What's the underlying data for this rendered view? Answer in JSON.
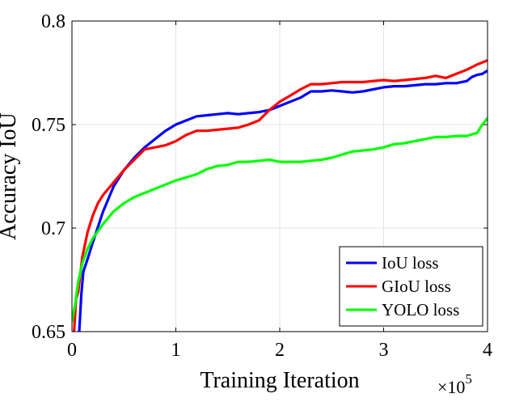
{
  "chart_data": {
    "type": "line",
    "title": "",
    "xlabel": "Training Iteration",
    "ylabel": "Accuracy IoU",
    "x_multiplier_label": "×10",
    "x_multiplier_exponent": "5",
    "xlim": [
      0,
      4
    ],
    "ylim": [
      0.65,
      0.8
    ],
    "xticks": [
      0,
      1,
      2,
      3,
      4
    ],
    "xtick_labels": [
      "0",
      "1",
      "2",
      "3",
      "4"
    ],
    "yticks": [
      0.65,
      0.7,
      0.75,
      0.8
    ],
    "ytick_labels": [
      "0.65",
      "0.7",
      "0.75",
      "0.8"
    ],
    "grid": true,
    "legend_position": "bottom-right",
    "series": [
      {
        "name": "IoU loss",
        "color": "#0000ff",
        "x": [
          0.07,
          0.09,
          0.11,
          0.15,
          0.2,
          0.3,
          0.4,
          0.5,
          0.6,
          0.7,
          0.8,
          0.9,
          1.0,
          1.1,
          1.2,
          1.3,
          1.4,
          1.5,
          1.6,
          1.7,
          1.8,
          1.9,
          2.0,
          2.1,
          2.2,
          2.3,
          2.4,
          2.5,
          2.6,
          2.7,
          2.8,
          2.9,
          3.0,
          3.1,
          3.2,
          3.3,
          3.4,
          3.5,
          3.6,
          3.7,
          3.8,
          3.85,
          3.9,
          3.95,
          4.0
        ],
        "y": [
          0.65,
          0.668,
          0.679,
          0.685,
          0.693,
          0.708,
          0.72,
          0.728,
          0.734,
          0.739,
          0.743,
          0.747,
          0.75,
          0.752,
          0.754,
          0.7545,
          0.755,
          0.7555,
          0.755,
          0.7555,
          0.756,
          0.757,
          0.759,
          0.761,
          0.763,
          0.766,
          0.766,
          0.7665,
          0.766,
          0.7655,
          0.766,
          0.767,
          0.768,
          0.7685,
          0.7685,
          0.769,
          0.7695,
          0.7695,
          0.77,
          0.77,
          0.771,
          0.773,
          0.774,
          0.7745,
          0.776
        ]
      },
      {
        "name": "GIoU loss",
        "color": "#ff0000",
        "x": [
          0.02,
          0.04,
          0.06,
          0.1,
          0.15,
          0.2,
          0.25,
          0.3,
          0.4,
          0.5,
          0.6,
          0.7,
          0.8,
          0.9,
          1.0,
          1.1,
          1.2,
          1.3,
          1.4,
          1.5,
          1.6,
          1.7,
          1.8,
          1.9,
          2.0,
          2.1,
          2.2,
          2.3,
          2.4,
          2.5,
          2.6,
          2.7,
          2.8,
          2.9,
          3.0,
          3.1,
          3.2,
          3.3,
          3.4,
          3.5,
          3.6,
          3.7,
          3.8,
          3.9,
          4.0
        ],
        "y": [
          0.65,
          0.666,
          0.669,
          0.686,
          0.698,
          0.706,
          0.712,
          0.716,
          0.722,
          0.728,
          0.733,
          0.738,
          0.739,
          0.74,
          0.742,
          0.745,
          0.747,
          0.747,
          0.7475,
          0.748,
          0.7485,
          0.75,
          0.752,
          0.757,
          0.761,
          0.764,
          0.767,
          0.7695,
          0.7695,
          0.77,
          0.7705,
          0.7705,
          0.7705,
          0.771,
          0.7715,
          0.771,
          0.7715,
          0.772,
          0.7725,
          0.7735,
          0.7725,
          0.7745,
          0.7765,
          0.779,
          0.781
        ]
      },
      {
        "name": "YOLO loss",
        "color": "#00ff00",
        "x": [
          0.0,
          0.03,
          0.06,
          0.1,
          0.15,
          0.2,
          0.3,
          0.4,
          0.5,
          0.6,
          0.7,
          0.8,
          0.9,
          1.0,
          1.1,
          1.2,
          1.3,
          1.4,
          1.5,
          1.6,
          1.7,
          1.8,
          1.9,
          2.0,
          2.1,
          2.2,
          2.3,
          2.4,
          2.5,
          2.6,
          2.7,
          2.8,
          2.9,
          3.0,
          3.1,
          3.2,
          3.3,
          3.4,
          3.5,
          3.6,
          3.7,
          3.8,
          3.9,
          3.95,
          4.0
        ],
        "y": [
          0.655,
          0.663,
          0.674,
          0.683,
          0.69,
          0.695,
          0.702,
          0.708,
          0.712,
          0.715,
          0.717,
          0.719,
          0.721,
          0.723,
          0.7245,
          0.726,
          0.7285,
          0.73,
          0.7305,
          0.732,
          0.732,
          0.7325,
          0.733,
          0.732,
          0.732,
          0.732,
          0.7325,
          0.733,
          0.734,
          0.7355,
          0.737,
          0.7375,
          0.738,
          0.739,
          0.7405,
          0.741,
          0.742,
          0.743,
          0.744,
          0.744,
          0.7445,
          0.7445,
          0.746,
          0.75,
          0.753
        ]
      }
    ]
  }
}
